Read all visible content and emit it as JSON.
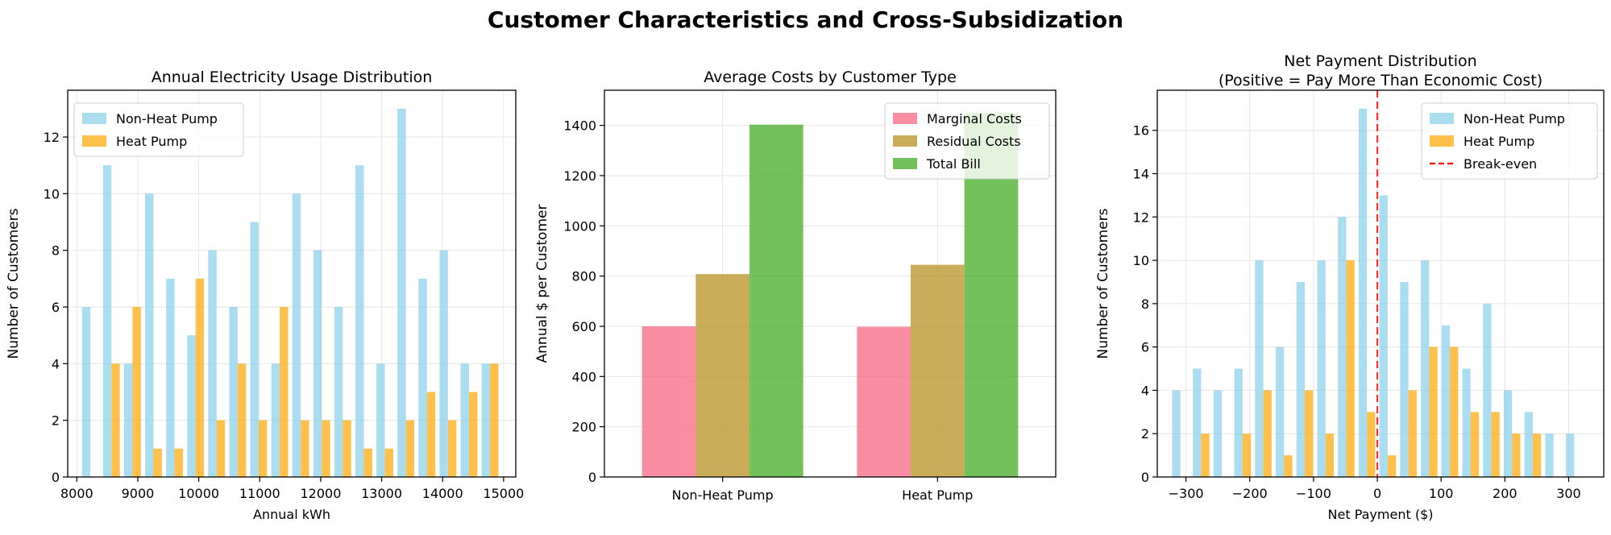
{
  "figure": {
    "title": "Customer Characteristics and Cross-Subsidization"
  },
  "colors": {
    "non_heat_pump": "#87ceeb",
    "heat_pump": "#ffa500",
    "marginal": "#f77189",
    "residual": "#bb9832",
    "total": "#50b131",
    "breakeven": "#ff0000",
    "grid": "#e6e6e6"
  },
  "chart_data": [
    {
      "type": "bar",
      "title": "Annual Electricity Usage Distribution",
      "xlabel": "Annual kWh",
      "ylabel": "Number of Customers",
      "xlim": [
        7850,
        15200
      ],
      "ylim": [
        0,
        13.65
      ],
      "xticks": [
        8000,
        9000,
        10000,
        11000,
        12000,
        13000,
        14000,
        15000
      ],
      "yticks": [
        0,
        2,
        4,
        6,
        8,
        10,
        12
      ],
      "grid": true,
      "legend": "top-left",
      "bin_start": 8050,
      "bin_width": 345,
      "series": [
        {
          "name": "Non-Heat Pump",
          "color": "#87ceeb",
          "values": [
            6,
            11,
            4,
            10,
            7,
            5,
            8,
            6,
            9,
            4,
            10,
            8,
            6,
            11,
            4,
            13,
            7,
            8,
            4,
            4
          ]
        },
        {
          "name": "Heat Pump",
          "color": "#ffa500",
          "values": [
            0,
            4,
            6,
            1,
            1,
            7,
            2,
            4,
            2,
            6,
            2,
            2,
            2,
            1,
            1,
            2,
            3,
            2,
            3,
            4
          ]
        }
      ]
    },
    {
      "type": "bar",
      "title": "Average Costs by Customer Type",
      "xlabel": "",
      "ylabel": "Annual $ per Customer",
      "ylim": [
        0,
        1540
      ],
      "yticks": [
        0,
        200,
        400,
        600,
        800,
        1000,
        1200,
        1400
      ],
      "grid": true,
      "legend": "top-right",
      "categories": [
        "Non-Heat Pump",
        "Heat Pump"
      ],
      "series": [
        {
          "name": "Marginal Costs",
          "color": "#f77189",
          "values": [
            600,
            598
          ]
        },
        {
          "name": "Residual Costs",
          "color": "#bb9832",
          "values": [
            808,
            845
          ]
        },
        {
          "name": "Total Bill",
          "color": "#50b131",
          "values": [
            1403,
            1450
          ]
        }
      ]
    },
    {
      "type": "bar",
      "title_lines": [
        "Net Payment Distribution",
        "(Positive = Pay More Than Economic Cost)"
      ],
      "xlabel": "Net Payment ($)",
      "ylabel": "Number of Customers",
      "xlim": [
        -345,
        355
      ],
      "ylim": [
        0,
        17.85
      ],
      "xticks": [
        -300,
        -200,
        -100,
        0,
        100,
        200,
        300
      ],
      "xtick_labels": [
        "−300",
        "−200",
        "−100",
        "0",
        "100",
        "200",
        "300"
      ],
      "yticks": [
        0,
        2,
        4,
        6,
        8,
        10,
        12,
        14,
        16
      ],
      "grid": true,
      "legend": "top-right",
      "bin_start": -325,
      "bin_width": 32.5,
      "series": [
        {
          "name": "Non-Heat Pump",
          "color": "#87ceeb",
          "values": [
            4,
            5,
            4,
            5,
            10,
            6,
            9,
            10,
            12,
            17,
            13,
            9,
            10,
            7,
            5,
            8,
            4,
            3,
            2,
            2
          ]
        },
        {
          "name": "Heat Pump",
          "color": "#ffa500",
          "values": [
            0,
            2,
            0,
            2,
            4,
            1,
            4,
            2,
            10,
            3,
            1,
            4,
            6,
            6,
            3,
            3,
            2,
            2,
            0,
            0
          ]
        }
      ],
      "reference_line": {
        "name": "Break-even",
        "x": 0,
        "color": "#ff0000"
      }
    }
  ]
}
